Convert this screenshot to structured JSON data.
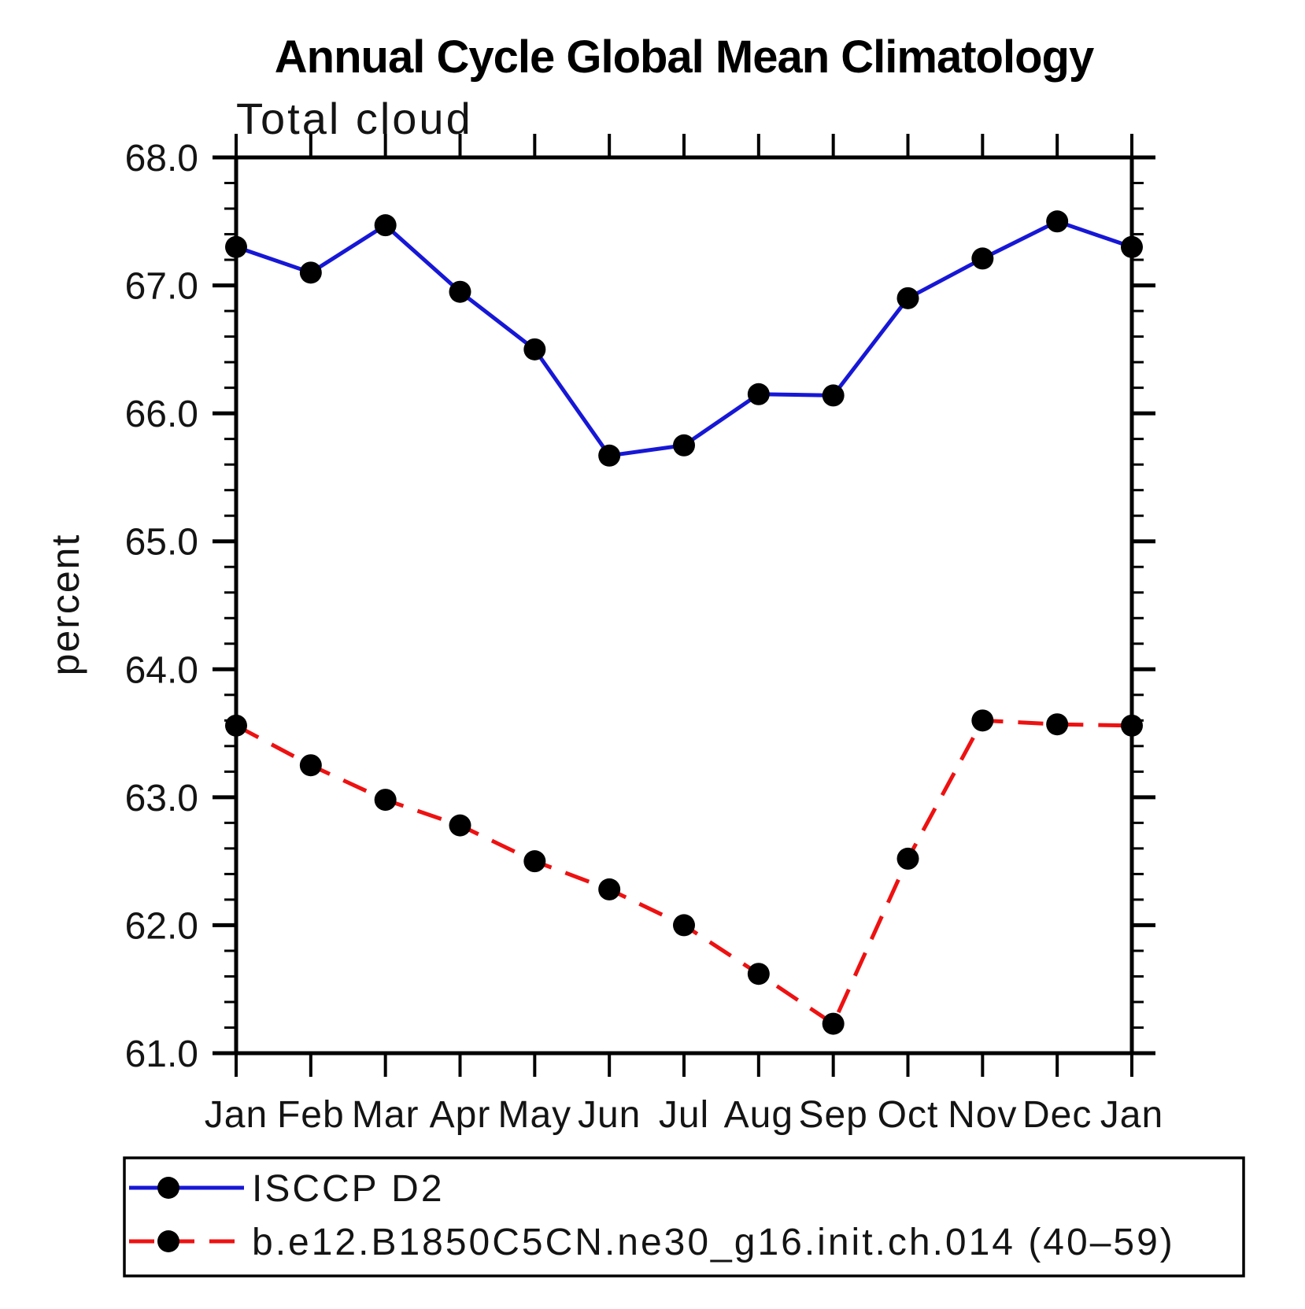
{
  "chart_data": {
    "type": "line",
    "title": "Annual Cycle Global Mean Climatology",
    "subtitle": "Total cloud",
    "ylabel": "percent",
    "xlabel": "",
    "ylim": [
      61.0,
      68.0
    ],
    "ytick_major_interval": 1.0,
    "ytick_minor_interval": 0.2,
    "ytick_label_format": "one-decimal",
    "grid": false,
    "legend_position": "bottom-box",
    "categories": [
      "Jan",
      "Feb",
      "Mar",
      "Apr",
      "May",
      "Jun",
      "Jul",
      "Aug",
      "Sep",
      "Oct",
      "Nov",
      "Dec",
      "Jan"
    ],
    "series": [
      {
        "name": "ISCCP D2",
        "color": "#1717d6",
        "line_style": "solid",
        "marker": "filled-circle",
        "marker_color": "#000000",
        "values": [
          67.3,
          67.1,
          67.47,
          66.95,
          66.5,
          65.67,
          65.75,
          66.15,
          66.14,
          66.9,
          67.21,
          67.5,
          67.3
        ]
      },
      {
        "name": "b.e12.B1850C5CN.ne30_g16.init.ch.014 (40–59)",
        "color": "#ee1111",
        "line_style": "dashed",
        "marker": "filled-circle",
        "marker_color": "#000000",
        "values": [
          63.56,
          63.25,
          62.98,
          62.78,
          62.5,
          62.28,
          62.0,
          61.62,
          61.23,
          62.52,
          63.6,
          63.57,
          63.56
        ]
      }
    ],
    "axis_color": "#000000"
  }
}
